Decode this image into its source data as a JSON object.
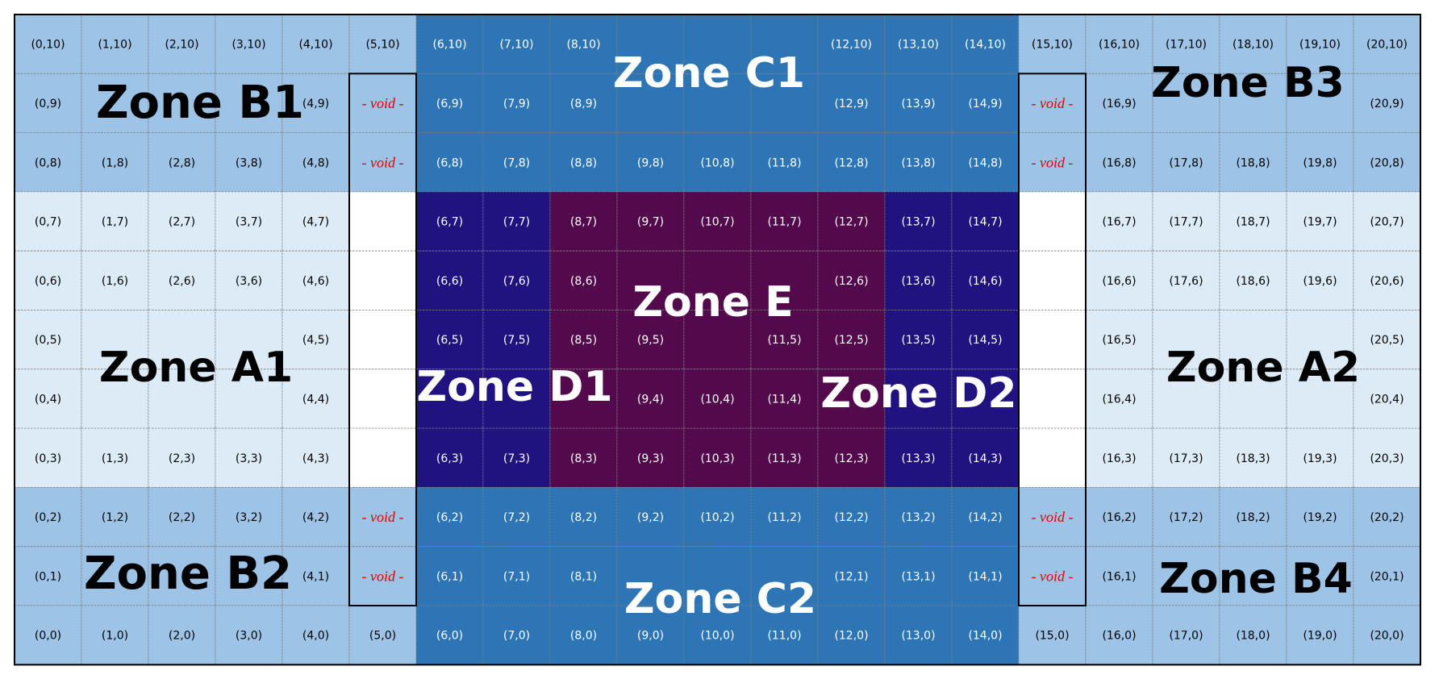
{
  "grid": {
    "cols": 21,
    "rows": 11,
    "void_text": "- void -",
    "void_cells": [
      [
        5,
        9
      ],
      [
        5,
        8
      ],
      [
        5,
        2
      ],
      [
        5,
        1
      ],
      [
        15,
        9
      ],
      [
        15,
        8
      ],
      [
        15,
        2
      ],
      [
        15,
        1
      ]
    ],
    "blank_cells": [
      [
        5,
        7
      ],
      [
        5,
        6
      ],
      [
        5,
        5
      ],
      [
        5,
        4
      ],
      [
        5,
        3
      ],
      [
        15,
        7
      ],
      [
        15,
        6
      ],
      [
        15,
        5
      ],
      [
        15,
        4
      ],
      [
        15,
        3
      ]
    ],
    "hidden_label_cells": [
      [
        1,
        9
      ],
      [
        2,
        9
      ],
      [
        3,
        9
      ],
      [
        1,
        1
      ],
      [
        2,
        1
      ],
      [
        3,
        1
      ],
      [
        6,
        4
      ],
      [
        7,
        4
      ],
      [
        8,
        4
      ],
      [
        12,
        4
      ],
      [
        13,
        4
      ],
      [
        14,
        4
      ],
      [
        17,
        9
      ],
      [
        18,
        9
      ],
      [
        19,
        9
      ],
      [
        17,
        1
      ],
      [
        18,
        1
      ],
      [
        19,
        1
      ],
      [
        9,
        6
      ],
      [
        10,
        6
      ],
      [
        11,
        6
      ],
      [
        10,
        5
      ],
      [
        9,
        1
      ],
      [
        10,
        1
      ],
      [
        11,
        1
      ],
      [
        9,
        10
      ],
      [
        10,
        10
      ],
      [
        11,
        10
      ],
      [
        9,
        9
      ],
      [
        10,
        9
      ],
      [
        11,
        9
      ],
      [
        1,
        5
      ],
      [
        2,
        5
      ],
      [
        3,
        5
      ],
      [
        1,
        4
      ],
      [
        2,
        4
      ],
      [
        3,
        4
      ],
      [
        17,
        5
      ],
      [
        18,
        5
      ],
      [
        19,
        5
      ],
      [
        17,
        4
      ],
      [
        18,
        4
      ],
      [
        19,
        4
      ]
    ]
  },
  "colors": {
    "zone_a": "#ddebf7",
    "zone_b": "#9dc3e6",
    "zone_c": "#2e75b6",
    "zone_d": "#20137f",
    "zone_e": "#530a4d",
    "blank": "#ffffff",
    "void_text": "#e00000",
    "cell_text_dark": "#000000",
    "cell_text_light": "#ffffff",
    "zone_text_dark": "#000000",
    "zone_text_light": "#ffffff"
  },
  "zones": [
    {
      "id": "A1",
      "label": "Zone A1",
      "text_tone": "dark"
    },
    {
      "id": "A2",
      "label": "Zone A2",
      "text_tone": "dark"
    },
    {
      "id": "B1",
      "label": "Zone B1",
      "text_tone": "dark"
    },
    {
      "id": "B2",
      "label": "Zone B2",
      "text_tone": "dark"
    },
    {
      "id": "B3",
      "label": "Zone B3",
      "text_tone": "dark"
    },
    {
      "id": "B4",
      "label": "Zone B4",
      "text_tone": "dark"
    },
    {
      "id": "C1",
      "label": "Zone C1",
      "text_tone": "light"
    },
    {
      "id": "C2",
      "label": "Zone C2",
      "text_tone": "light"
    },
    {
      "id": "D1",
      "label": "Zone D1",
      "text_tone": "light"
    },
    {
      "id": "D2",
      "label": "Zone D2",
      "text_tone": "light"
    },
    {
      "id": "E",
      "label": "Zone E",
      "text_tone": "light"
    }
  ]
}
